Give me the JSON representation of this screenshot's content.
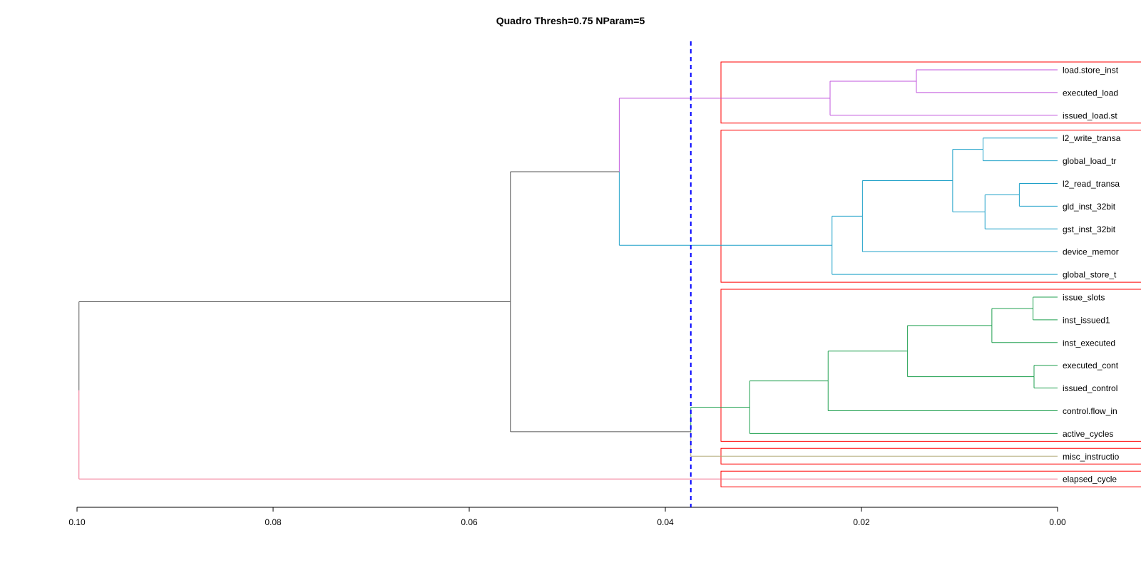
{
  "title": "Quadro Thresh=0.75 NParam=5",
  "chart_data": {
    "type": "dendrogram",
    "orientation": "horizontal",
    "x_axis": {
      "ticks": [
        0.1,
        0.08,
        0.06,
        0.04,
        0.02,
        0.0
      ],
      "tick_labels": [
        "0.10",
        "0.08",
        "0.06",
        "0.04",
        "0.02",
        "0.00"
      ],
      "reversed": true
    },
    "threshold": {
      "value": 0.0374,
      "color": "#0000ff",
      "style": "dashed"
    },
    "leaves": [
      "load.store_inst",
      "executed_load",
      "issued_load.st",
      "l2_write_transa",
      "global_load_tr",
      "l2_read_transa",
      "gld_inst_32bit",
      "gst_inst_32bit",
      "device_memor",
      "global_store_t",
      "issue_slots",
      "inst_issued1",
      "inst_executed",
      "executed_cont",
      "issued_control",
      "control.flow_in",
      "active_cycles",
      "misc_instructio",
      "elapsed_cycle"
    ],
    "merges": [
      {
        "id": "m1",
        "children": [
          "L0",
          "L1"
        ],
        "height": 0.0144,
        "color": "#c155dd"
      },
      {
        "id": "m2",
        "children": [
          "m1",
          "L2"
        ],
        "height": 0.0232,
        "color": "#c155dd"
      },
      {
        "id": "m3",
        "children": [
          "L5",
          "L6"
        ],
        "height": 0.0039,
        "color": "#1ea0c8"
      },
      {
        "id": "m4",
        "children": [
          "L3",
          "L4"
        ],
        "height": 0.0076,
        "color": "#1ea0c8"
      },
      {
        "id": "m5",
        "children": [
          "m3",
          "L7"
        ],
        "height": 0.0074,
        "color": "#1ea0c8"
      },
      {
        "id": "m6",
        "children": [
          "m4",
          "m5"
        ],
        "height": 0.0107,
        "color": "#1ea0c8"
      },
      {
        "id": "m7",
        "children": [
          "m6",
          "L8"
        ],
        "height": 0.0199,
        "color": "#1ea0c8"
      },
      {
        "id": "m8",
        "children": [
          "m7",
          "L9"
        ],
        "height": 0.023,
        "color": "#1ea0c8"
      },
      {
        "id": "m9",
        "children": [
          "L10",
          "L11"
        ],
        "height": 0.0025,
        "color": "#20a050"
      },
      {
        "id": "m10",
        "children": [
          "L13",
          "L14"
        ],
        "height": 0.0024,
        "color": "#20a050"
      },
      {
        "id": "m11",
        "children": [
          "m9",
          "L12"
        ],
        "height": 0.0067,
        "color": "#20a050"
      },
      {
        "id": "m12",
        "children": [
          "m11",
          "m10"
        ],
        "height": 0.0153,
        "color": "#20a050"
      },
      {
        "id": "m13",
        "children": [
          "m12",
          "L15"
        ],
        "height": 0.0234,
        "color": "#20a050"
      },
      {
        "id": "m14",
        "children": [
          "m13",
          "L16"
        ],
        "height": 0.0314,
        "color": "#20a050"
      },
      {
        "id": "m15",
        "children": [
          "m2",
          "m8"
        ],
        "height": 0.0447,
        "color": "#c155dd",
        "lower_color": "#1ea0c8"
      },
      {
        "id": "m16",
        "children": [
          "m14",
          "L17"
        ],
        "height": 0.0374,
        "color": "#20a050",
        "lower_color": "#b4aa78"
      },
      {
        "id": "m17",
        "children": [
          "m15",
          "m16"
        ],
        "height": 0.0558,
        "color": "#555555"
      },
      {
        "id": "m18",
        "children": [
          "m17",
          "L18"
        ],
        "height": 0.0998,
        "color": "#555555",
        "lower_color": "#f06a8a"
      }
    ],
    "cluster_boxes": {
      "color": "#ff0000",
      "groups": [
        [
          0,
          2
        ],
        [
          3,
          9
        ],
        [
          10,
          16
        ],
        [
          17,
          17
        ],
        [
          18,
          18
        ]
      ]
    }
  }
}
